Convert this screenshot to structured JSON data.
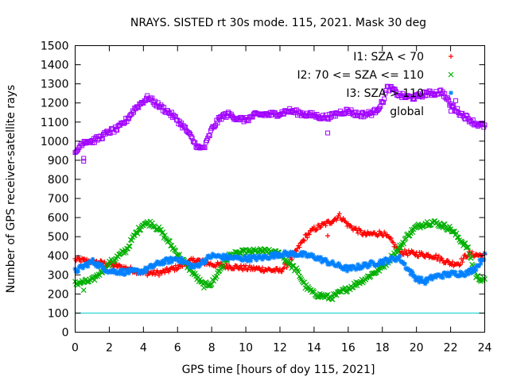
{
  "chart_data": {
    "type": "scatter",
    "title": "NRAYS. SISTED rt 30s mode. 115, 2021. Mask 30 deg",
    "xlabel": "GPS time [hours of doy 115, 2021]",
    "ylabel": "Number of GPS receiver-satellite rays",
    "xlim": [
      0,
      24
    ],
    "ylim": [
      0,
      1500
    ],
    "x_ticks": [
      "0",
      "2",
      "4",
      "6",
      "8",
      "10",
      "12",
      "14",
      "16",
      "18",
      "20",
      "22",
      "24"
    ],
    "y_ticks": [
      "0",
      "100",
      "200",
      "300",
      "400",
      "500",
      "600",
      "700",
      "800",
      "900",
      "1000",
      "1100",
      "1200",
      "1300",
      "1400",
      "1500"
    ],
    "grid": false,
    "legend_position": "top-right",
    "reference_line": {
      "y": 100,
      "color": "#00d0d0"
    },
    "series": [
      {
        "name": "I1: SZA < 70",
        "color": "#ff0000",
        "marker": "+",
        "x": [
          0,
          1,
          2,
          3,
          4,
          5,
          6,
          7,
          8,
          9,
          10,
          11,
          12,
          12.5,
          13,
          13.5,
          14,
          14.5,
          15,
          15.5,
          16,
          17,
          18,
          18.5,
          19,
          20,
          21,
          22,
          22.5,
          23,
          24
        ],
        "values": [
          380,
          370,
          355,
          335,
          310,
          310,
          340,
          380,
          355,
          345,
          335,
          330,
          320,
          360,
          430,
          500,
          540,
          560,
          580,
          610,
          560,
          510,
          520,
          480,
          420,
          410,
          400,
          360,
          360,
          410,
          400
        ]
      },
      {
        "name": "I2: 70 <= SZA <= 110",
        "color": "#00b000",
        "marker": "x",
        "x": [
          0,
          1,
          2,
          3,
          3.5,
          4,
          4.5,
          5,
          6,
          7,
          7.5,
          8,
          8.5,
          9,
          10,
          11,
          12,
          13,
          13.5,
          14,
          15,
          16,
          17,
          18,
          19,
          19.5,
          20,
          20.5,
          21,
          21.5,
          22,
          23,
          23.5,
          24
        ],
        "values": [
          255,
          270,
          360,
          430,
          510,
          570,
          570,
          530,
          410,
          300,
          245,
          255,
          330,
          400,
          420,
          425,
          410,
          320,
          240,
          200,
          180,
          230,
          280,
          340,
          440,
          510,
          550,
          570,
          575,
          560,
          540,
          440,
          290,
          270
        ]
      },
      {
        "name": "I3: SZA > 110",
        "color": "#0080ff",
        "marker": "*",
        "x": [
          0,
          1,
          2,
          3,
          4,
          5,
          6,
          7,
          8,
          9,
          10,
          11,
          12,
          13,
          14,
          15,
          16,
          17,
          18,
          19,
          19.5,
          20,
          20.5,
          21,
          22,
          23,
          23.5,
          24
        ],
        "values": [
          320,
          370,
          320,
          315,
          320,
          365,
          385,
          340,
          400,
          390,
          385,
          390,
          410,
          410,
          395,
          360,
          330,
          350,
          370,
          390,
          330,
          280,
          265,
          290,
          305,
          310,
          340,
          400
        ]
      },
      {
        "name": "global",
        "color": "#a000ff",
        "marker": "square",
        "x": [
          0,
          0.3,
          0.5,
          1,
          1.5,
          2,
          2.5,
          3,
          3.5,
          4,
          4.3,
          4.6,
          5,
          5.5,
          6,
          6.5,
          7,
          7.3,
          7.6,
          8,
          8.3,
          8.6,
          9,
          9.5,
          10,
          10.5,
          11,
          11.5,
          12,
          12.5,
          13,
          13.5,
          14,
          14.5,
          15,
          15.5,
          16,
          16.5,
          17,
          17.5,
          18,
          18.3,
          18.6,
          19,
          19.5,
          20,
          20.5,
          21,
          21.5,
          22,
          22.5,
          23,
          23.5,
          24
        ],
        "values": [
          930,
          980,
          1000,
          1000,
          1020,
          1050,
          1065,
          1110,
          1170,
          1210,
          1230,
          1205,
          1180,
          1150,
          1110,
          1060,
          990,
          960,
          970,
          1060,
          1100,
          1130,
          1140,
          1120,
          1110,
          1135,
          1140,
          1140,
          1145,
          1160,
          1150,
          1140,
          1135,
          1125,
          1130,
          1150,
          1160,
          1140,
          1140,
          1150,
          1200,
          1280,
          1270,
          1240,
          1230,
          1230,
          1250,
          1250,
          1260,
          1190,
          1150,
          1120,
          1090,
          1080
        ]
      }
    ],
    "outliers": [
      {
        "series": "global",
        "x": 0.5,
        "y": 895
      },
      {
        "series": "global",
        "x": 0.5,
        "y": 910
      },
      {
        "series": "global",
        "x": 14.8,
        "y": 1043
      },
      {
        "series": "global",
        "x": 22.3,
        "y": 1212
      },
      {
        "series": "I1: SZA < 70",
        "x": 14.8,
        "y": 505
      },
      {
        "series": "I2: 70 <= SZA <= 110",
        "x": 0.5,
        "y": 220
      }
    ]
  }
}
